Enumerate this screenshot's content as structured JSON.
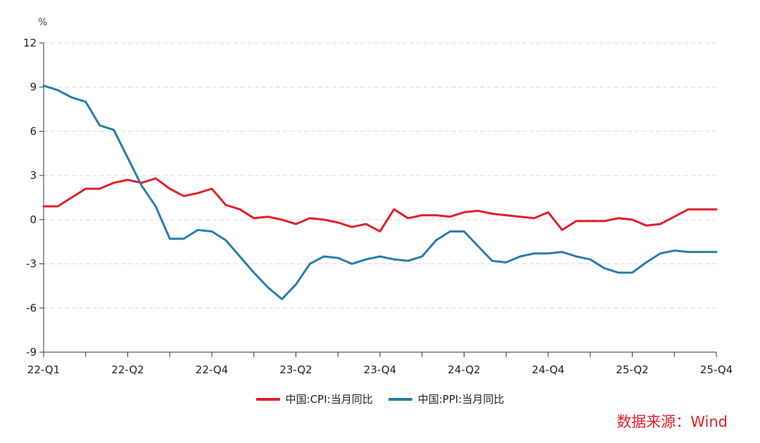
{
  "chart_data": {
    "type": "line",
    "unit": "%",
    "ylim": [
      -9,
      12
    ],
    "yticks": [
      -9,
      -6,
      -3,
      0,
      3,
      6,
      9,
      12
    ],
    "x_tick_labels": [
      "22-Q1",
      "22-Q2",
      "22-Q4",
      "23-Q2",
      "23-Q4",
      "24-Q2",
      "24-Q4",
      "25-Q2",
      "25-Q4"
    ],
    "x_tick_label_months": [
      0,
      6,
      12,
      18,
      24,
      30,
      36,
      42,
      48
    ],
    "x_major_tick_months": [
      0,
      3,
      6,
      9,
      12,
      15,
      18,
      21,
      24,
      27,
      30,
      33,
      36,
      39,
      42,
      45,
      48
    ],
    "x_months": [
      0,
      1,
      2,
      3,
      4,
      5,
      6,
      7,
      8,
      9,
      10,
      11,
      12,
      13,
      14,
      15,
      16,
      17,
      18,
      19,
      20,
      21,
      22,
      23,
      24,
      25,
      26,
      27,
      28,
      29,
      30,
      31,
      32,
      33,
      34,
      35,
      36,
      37,
      38,
      39,
      40,
      41,
      42,
      43,
      44,
      45,
      46,
      47,
      48
    ],
    "grid": true,
    "legend_position": "bottom",
    "series": [
      {
        "name": "中国:CPI:当月同比",
        "color": "#e0202a",
        "values": [
          0.9,
          0.9,
          1.5,
          2.1,
          2.1,
          2.5,
          2.7,
          2.5,
          2.8,
          2.1,
          1.6,
          1.8,
          2.1,
          1.0,
          0.7,
          0.1,
          0.2,
          0.0,
          -0.3,
          0.1,
          0.0,
          -0.2,
          -0.5,
          -0.3,
          -0.8,
          0.7,
          0.1,
          0.3,
          0.3,
          0.2,
          0.5,
          0.6,
          0.4,
          0.3,
          0.2,
          0.1,
          0.5,
          -0.7,
          -0.1,
          -0.1,
          -0.1,
          0.1,
          0.0,
          -0.4,
          -0.3,
          0.2,
          0.7,
          0.7,
          0.7
        ]
      },
      {
        "name": "中国:PPI:当月同比",
        "color": "#2b7ca8",
        "values": [
          9.1,
          8.8,
          8.3,
          8.0,
          6.4,
          6.1,
          4.2,
          2.3,
          0.9,
          -1.3,
          -1.3,
          -0.7,
          -0.8,
          -1.4,
          -2.5,
          -3.6,
          -4.6,
          -5.4,
          -4.4,
          -3.0,
          -2.5,
          -2.6,
          -3.0,
          -2.7,
          -2.5,
          -2.7,
          -2.8,
          -2.5,
          -1.4,
          -0.8,
          -0.8,
          -1.8,
          -2.8,
          -2.9,
          -2.5,
          -2.3,
          -2.3,
          -2.2,
          -2.5,
          -2.7,
          -3.3,
          -3.6,
          -3.6,
          -2.9,
          -2.3,
          -2.1,
          -2.2,
          -2.2,
          -2.2
        ]
      }
    ]
  },
  "source_note": "数据来源：Wind",
  "colors": {
    "source_note": "#e0202a",
    "grid": "#d9d9d9",
    "axis": "#333333"
  }
}
